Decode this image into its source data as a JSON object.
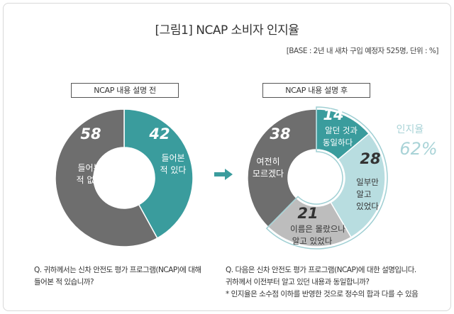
{
  "title": "[그림1] NCAP 소비자 인지율",
  "base": "[BASE : 2년 내 새차 구입 예정자 525명, 단위 : %]",
  "colors": {
    "teal": "#3a9c9d",
    "dark_gray": "#6e6e6e",
    "light_teal": "#b8dde0",
    "light_gray": "#bdbdbd",
    "awareness": "#b3d8dc"
  },
  "chart_data": [
    {
      "type": "pie",
      "variant": "donut",
      "title": "NCAP 내용 설명 전",
      "slices": [
        {
          "label": "들어본 적 있다",
          "value": 42,
          "color": "#3a9c9d"
        },
        {
          "label": "들어본 적 없다",
          "value": 58,
          "color": "#6e6e6e"
        }
      ]
    },
    {
      "type": "pie",
      "variant": "donut",
      "title": "NCAP 내용 설명 후",
      "slices": [
        {
          "label": "알던 것과 동일하다",
          "value": 14,
          "color": "#3a9c9d"
        },
        {
          "label": "일부만 알고 있었다",
          "value": 28,
          "color": "#b8dde0"
        },
        {
          "label": "이름은 몰랐으나 알고 있었다",
          "value": 21,
          "color": "#bdbdbd"
        },
        {
          "label": "여전히 모르겠다",
          "value": 38,
          "color": "#6e6e6e"
        }
      ],
      "annotation": {
        "label": "인지율",
        "value": "62%"
      }
    }
  ],
  "labels": {
    "left": {
      "v42": "42",
      "l42a": "들어본",
      "l42b": "적 있다",
      "v58": "58",
      "l58a": "들어본",
      "l58b": "적 없다"
    },
    "right": {
      "v14": "14",
      "l14a": "알던 것과",
      "l14b": "동일하다",
      "v28": "28",
      "l28a": "일부만",
      "l28b": "알고",
      "l28c": "있었다",
      "v21": "21",
      "l21a": "이름은 몰랐으나",
      "l21b": "알고 있었다",
      "v38": "38",
      "l38a": "여전히",
      "l38b": "모르겠다",
      "aw_label": "인지율",
      "aw_value": "62%"
    }
  },
  "questions": {
    "left": [
      "Q. 귀하께서는 신차 안전도 평가 프로그램(NCAP)에 대해",
      "들어본 적 있습니까?"
    ],
    "right": [
      "Q. 다음은 신차 안전도 평가 프로그램(NCAP)에 대한 설명입니다.",
      "귀하께서 이전부터 알고 있던 내용과 동일합니까?",
      "* 인지율은 소수점 이하를 반영한 것으로 정수의 합과 다를 수 있음"
    ]
  }
}
